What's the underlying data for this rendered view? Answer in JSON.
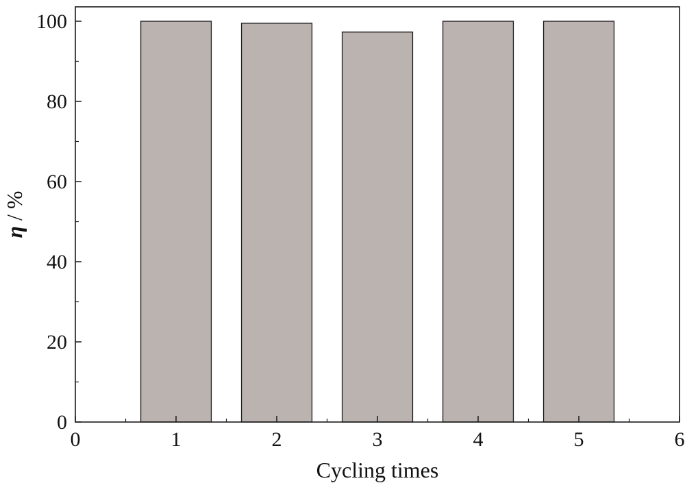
{
  "chart_data": {
    "type": "bar",
    "x": [
      1,
      2,
      3,
      4,
      5
    ],
    "values": [
      100,
      99.5,
      97.3,
      100,
      100
    ],
    "xlabel": "Cycling times",
    "ylabel_symbol": "η",
    "ylabel_unit": " / %",
    "xlim": [
      0,
      6
    ],
    "ylim": [
      0,
      100
    ],
    "xticks": [
      0,
      1,
      2,
      3,
      4,
      5,
      6
    ],
    "yticks": [
      0,
      20,
      40,
      60,
      80,
      100
    ],
    "grid": false,
    "bar_color": "#bab3b0",
    "edge_color": "#1a1a1a"
  }
}
